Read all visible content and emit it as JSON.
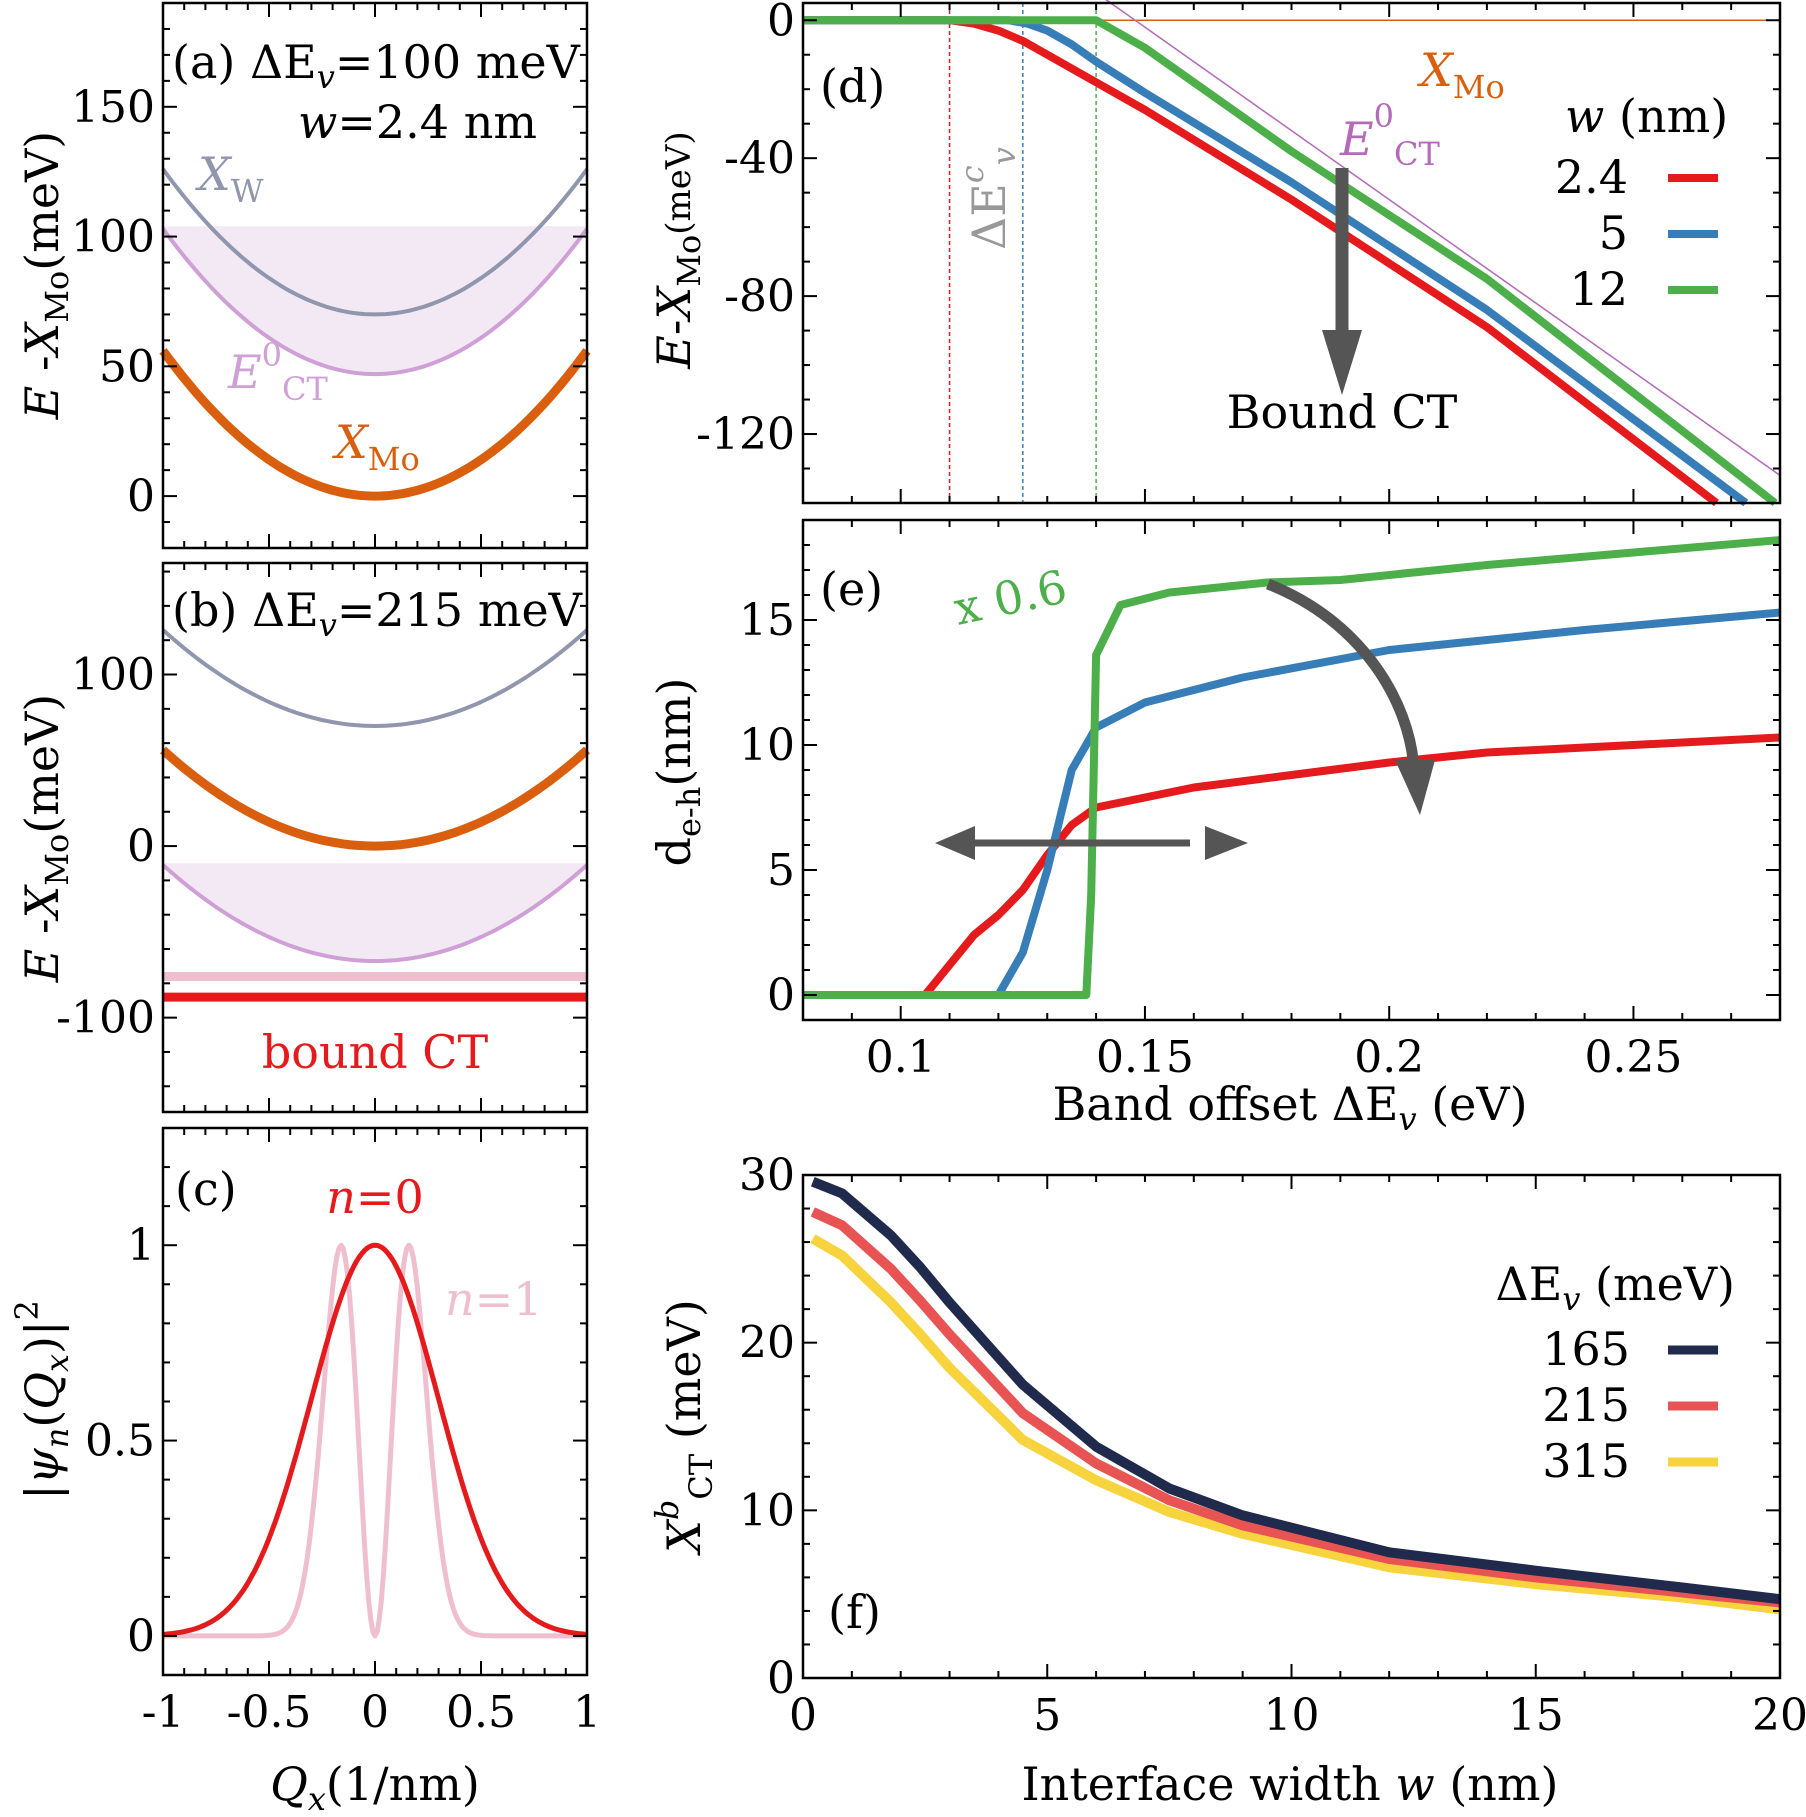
{
  "colors": {
    "xw": "#8f96ad",
    "ect": "#cfa0d6",
    "ect_fill": "#f3e9f4",
    "xmo": "#d95f0e",
    "bound": "#e41a1c",
    "bound_light": "#efbfd0",
    "psi0": "#e41a1c",
    "psi1": "#efbfd0",
    "w24": "#e41a1c",
    "w5": "#377eb8",
    "w12": "#4daf4a",
    "e165": "#1f2a4d",
    "e215": "#e85454",
    "e315": "#f7d33d",
    "arrow": "#555555",
    "ect0_line": "#b36ab8"
  },
  "chart_data": [
    {
      "id": "a",
      "type": "line",
      "panel_label": "(a)",
      "annotation_line1": "ΔE",
      "annotation_line1_sub": "v",
      "annotation_line1_tail": "=100 meV",
      "annotation_line2_var": "w",
      "annotation_line2_tail": "=2.4 nm",
      "ylabel_main": "E -X",
      "ylabel_sub": "Mo",
      "ylabel_unit": "(meV)",
      "xlim": [
        -1,
        1
      ],
      "ylim": [
        -20,
        190
      ],
      "yticks": [
        "0",
        "50",
        "100",
        "150"
      ],
      "ytick_values": [
        0,
        50,
        100,
        150
      ],
      "series": [
        {
          "name": "XW",
          "label_main": "X",
          "label_sub": "W",
          "offset": 70,
          "curv": 56
        },
        {
          "name": "ECT0",
          "label_main": "E",
          "label_sup": "0",
          "label_sub": "CT",
          "offset": 47,
          "curv": 56
        },
        {
          "name": "XMo",
          "label_main": "X",
          "label_sub": "Mo",
          "offset": 0,
          "curv": 56
        }
      ],
      "continuum_top": 104
    },
    {
      "id": "b",
      "type": "line",
      "panel_label": "(b)",
      "annotation_line1": "ΔE",
      "annotation_line1_sub": "v",
      "annotation_line1_tail": "=215 meV",
      "ylabel_main": "E -X",
      "ylabel_sub": "Mo",
      "ylabel_unit": "(meV)",
      "xlim": [
        -1,
        1
      ],
      "ylim": [
        -155,
        165
      ],
      "yticks": [
        "-100",
        "0",
        "100"
      ],
      "ytick_values": [
        -100,
        0,
        100
      ],
      "series": [
        {
          "name": "XW",
          "offset": 70,
          "curv": 56
        },
        {
          "name": "XMo",
          "offset": 0,
          "curv": 56
        },
        {
          "name": "ECT0",
          "offset": -67,
          "curv": 56
        },
        {
          "name": "bound CT (light)",
          "value": -76
        },
        {
          "name": "bound CT",
          "value": -88
        }
      ],
      "continuum_top": -10,
      "bound_label": "bound CT"
    },
    {
      "id": "c",
      "type": "line",
      "panel_label": "(c)",
      "ylabel": "|ψ_n(Q_x)|²",
      "xlabel_main": "Q",
      "xlabel_sub": "x",
      "xlabel_unit": "(1/nm)",
      "xlim": [
        -1,
        1
      ],
      "ylim": [
        -0.1,
        1.3
      ],
      "xticks": [
        "-1",
        "-0.5",
        "0",
        "0.5",
        "1"
      ],
      "xtick_values": [
        -1,
        -0.5,
        0,
        0.5,
        1
      ],
      "yticks": [
        "0",
        "0.5",
        "1"
      ],
      "ytick_values": [
        0,
        0.5,
        1
      ],
      "series": [
        {
          "name": "n=0",
          "label_var": "n",
          "label_tail": "=0",
          "sigma": 0.3
        },
        {
          "name": "n=1",
          "label_var": "n",
          "label_tail": "=1",
          "sigma": 0.16
        }
      ]
    },
    {
      "id": "d",
      "type": "line",
      "panel_label": "(d)",
      "ylabel_main": "E-X",
      "ylabel_sub": "Mo",
      "ylabel_unit": "(meV)",
      "xlim": [
        0.08,
        0.28
      ],
      "ylim": [
        -140,
        5
      ],
      "yticks": [
        "0",
        "-40",
        "-80",
        "-120"
      ],
      "ytick_values": [
        0,
        -40,
        -80,
        -120
      ],
      "xtick_values": [
        0.1,
        0.15,
        0.2,
        0.25
      ],
      "legend_title_var": "w",
      "legend_title_unit": "(nm)",
      "series": [
        {
          "name": "2.4",
          "threshold": 0.11,
          "points": [
            [
              0.08,
              0
            ],
            [
              0.11,
              0
            ],
            [
              0.115,
              -1
            ],
            [
              0.12,
              -3
            ],
            [
              0.125,
              -6
            ],
            [
              0.13,
              -10
            ],
            [
              0.14,
              -18
            ],
            [
              0.15,
              -26
            ],
            [
              0.18,
              -52
            ],
            [
              0.22,
              -89
            ],
            [
              0.267,
              -140
            ]
          ]
        },
        {
          "name": "5",
          "threshold": 0.125,
          "points": [
            [
              0.08,
              0
            ],
            [
              0.122,
              0
            ],
            [
              0.126,
              -1
            ],
            [
              0.13,
              -3
            ],
            [
              0.135,
              -7
            ],
            [
              0.14,
              -12
            ],
            [
              0.15,
              -21
            ],
            [
              0.18,
              -47
            ],
            [
              0.22,
              -84
            ],
            [
              0.273,
              -140
            ]
          ]
        },
        {
          "name": "12",
          "threshold": 0.14,
          "points": [
            [
              0.08,
              0
            ],
            [
              0.14,
              0
            ],
            [
              0.145,
              -4
            ],
            [
              0.15,
              -8
            ],
            [
              0.18,
              -38
            ],
            [
              0.22,
              -75
            ],
            [
              0.279,
              -140
            ]
          ]
        }
      ],
      "xmo_label_main": "X",
      "xmo_label_sub": "Mo",
      "ect0_label_main": "E",
      "ect0_label_sup": "0",
      "ect0_label_sub": "CT",
      "ect0_line": [
        [
          0.14,
          8
        ],
        [
          0.28,
          -132
        ]
      ],
      "threshold_label_main": "ΔE",
      "threshold_label_sup": "c",
      "threshold_label_sub": "v",
      "bound_label": "Bound CT"
    },
    {
      "id": "e",
      "type": "line",
      "panel_label": "(e)",
      "ylabel_main": "d",
      "ylabel_sub": "e-h",
      "ylabel_unit": "(nm)",
      "xlabel": "Band offset ΔE",
      "xlabel_sub": "v",
      "xlabel_unit": "(eV)",
      "xlim": [
        0.08,
        0.28
      ],
      "ylim": [
        -1,
        19
      ],
      "xticks": [
        "0.1",
        "0.15",
        "0.2",
        "0.25"
      ],
      "xtick_values": [
        0.1,
        0.15,
        0.2,
        0.25
      ],
      "yticks": [
        "0",
        "5",
        "10",
        "15"
      ],
      "ytick_values": [
        0,
        5,
        10,
        15
      ],
      "scale_label": "x 0.6",
      "series": [
        {
          "name": "2.4",
          "points": [
            [
              0.08,
              0
            ],
            [
              0.105,
              0
            ],
            [
              0.11,
              1.2
            ],
            [
              0.115,
              2.4
            ],
            [
              0.12,
              3.2
            ],
            [
              0.125,
              4.2
            ],
            [
              0.13,
              5.6
            ],
            [
              0.135,
              6.8
            ],
            [
              0.14,
              7.5
            ],
            [
              0.15,
              7.9
            ],
            [
              0.16,
              8.3
            ],
            [
              0.18,
              8.8
            ],
            [
              0.2,
              9.3
            ],
            [
              0.22,
              9.7
            ],
            [
              0.25,
              10.0
            ],
            [
              0.28,
              10.3
            ]
          ]
        },
        {
          "name": "5",
          "points": [
            [
              0.08,
              0
            ],
            [
              0.12,
              0
            ],
            [
              0.125,
              1.7
            ],
            [
              0.13,
              5.0
            ],
            [
              0.135,
              9.0
            ],
            [
              0.14,
              10.7
            ],
            [
              0.15,
              11.7
            ],
            [
              0.17,
              12.7
            ],
            [
              0.2,
              13.8
            ],
            [
              0.24,
              14.6
            ],
            [
              0.28,
              15.3
            ]
          ]
        },
        {
          "name": "12",
          "points": [
            [
              0.08,
              0
            ],
            [
              0.138,
              0
            ],
            [
              0.139,
              4.0
            ],
            [
              0.14,
              13.6
            ],
            [
              0.145,
              15.6
            ],
            [
              0.155,
              16.1
            ],
            [
              0.175,
              16.5
            ],
            [
              0.19,
              16.6
            ],
            [
              0.22,
              17.2
            ],
            [
              0.25,
              17.7
            ],
            [
              0.28,
              18.2
            ]
          ]
        }
      ]
    },
    {
      "id": "f",
      "type": "line",
      "panel_label": "(f)",
      "ylabel_main": "X",
      "ylabel_sup": "b",
      "ylabel_sub": "CT",
      "ylabel_unit": "(meV)",
      "xlabel": "Interface width",
      "xlabel_var": "w",
      "xlabel_unit": "(nm)",
      "xlim": [
        0,
        20
      ],
      "ylim": [
        0,
        30
      ],
      "xticks": [
        "0",
        "5",
        "10",
        "15",
        "20"
      ],
      "xtick_values": [
        0,
        5,
        10,
        15,
        20
      ],
      "yticks": [
        "0",
        "10",
        "20",
        "30"
      ],
      "ytick_values": [
        0,
        10,
        20,
        30
      ],
      "legend_title_main": "ΔE",
      "legend_title_sub": "v",
      "legend_title_unit": "(meV)",
      "series": [
        {
          "name": "165",
          "points": [
            [
              0.2,
              29.6
            ],
            [
              0.8,
              28.9
            ],
            [
              1.8,
              26.4
            ],
            [
              2.4,
              24.5
            ],
            [
              3.0,
              22.4
            ],
            [
              4.5,
              17.5
            ],
            [
              6.0,
              13.8
            ],
            [
              7.5,
              11.3
            ],
            [
              9.0,
              9.7
            ],
            [
              12.0,
              7.5
            ],
            [
              15.0,
              6.4
            ],
            [
              18.0,
              5.4
            ],
            [
              20.0,
              4.7
            ]
          ]
        },
        {
          "name": "215",
          "points": [
            [
              0.2,
              27.8
            ],
            [
              0.8,
              27.0
            ],
            [
              1.8,
              24.4
            ],
            [
              2.4,
              22.5
            ],
            [
              3.0,
              20.5
            ],
            [
              4.5,
              15.8
            ],
            [
              6.0,
              12.8
            ],
            [
              7.5,
              10.6
            ],
            [
              9.0,
              9.1
            ],
            [
              12.0,
              7.1
            ],
            [
              15.0,
              6.0
            ],
            [
              18.0,
              5.1
            ],
            [
              20.0,
              4.5
            ]
          ]
        },
        {
          "name": "315",
          "points": [
            [
              0.2,
              26.2
            ],
            [
              0.8,
              25.2
            ],
            [
              1.8,
              22.4
            ],
            [
              2.4,
              20.5
            ],
            [
              3.0,
              18.5
            ],
            [
              4.5,
              14.2
            ],
            [
              6.0,
              11.8
            ],
            [
              7.5,
              9.9
            ],
            [
              9.0,
              8.6
            ],
            [
              12.0,
              6.6
            ],
            [
              15.0,
              5.6
            ],
            [
              18.0,
              4.8
            ],
            [
              20.0,
              4.1
            ]
          ]
        }
      ]
    }
  ]
}
